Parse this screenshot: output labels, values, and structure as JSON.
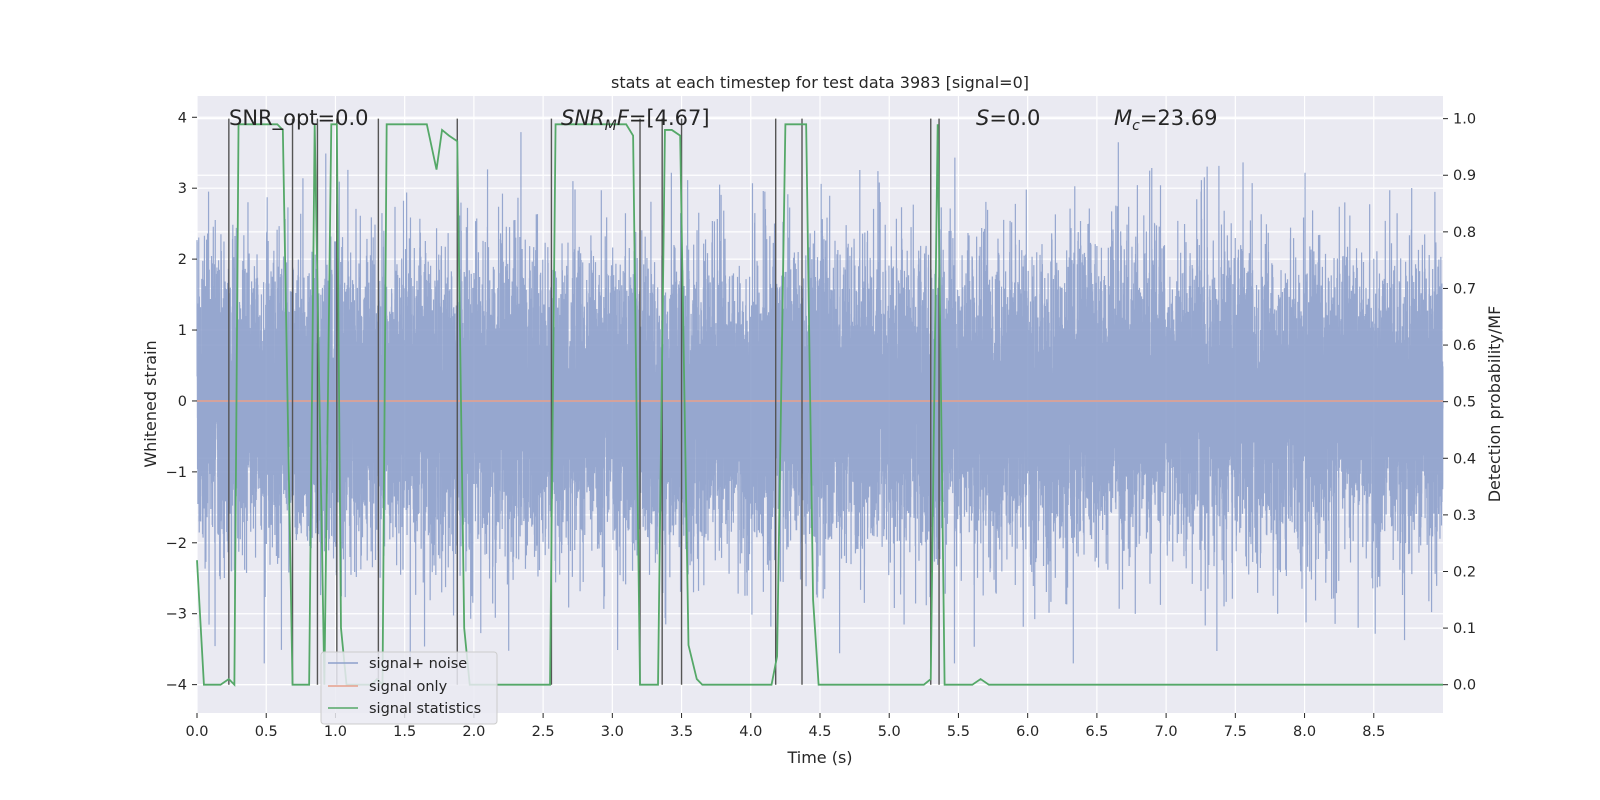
{
  "chart_data": {
    "type": "line",
    "title": "stats at each timestep for test data 3983 [signal=0]",
    "xlabel": "Time (s)",
    "ylabel_left": "Whitened strain",
    "ylabel_right": "Detection probability/MF",
    "xlim": [
      0.0,
      9.0
    ],
    "ylim_left": [
      -4.4,
      4.3
    ],
    "ylim_right": [
      -0.05,
      1.04
    ],
    "x_ticks": [
      0.0,
      0.5,
      1.0,
      1.5,
      2.0,
      2.5,
      3.0,
      3.5,
      4.0,
      4.5,
      5.0,
      5.5,
      6.0,
      6.5,
      7.0,
      7.5,
      8.0,
      8.5
    ],
    "x_tick_labels": [
      "0.0",
      "0.5",
      "1.0",
      "1.5",
      "2.0",
      "2.5",
      "3.0",
      "3.5",
      "4.0",
      "4.5",
      "5.0",
      "5.5",
      "6.0",
      "6.5",
      "7.0",
      "7.5",
      "8.0",
      "8.5"
    ],
    "y_ticks_left": [
      4,
      3,
      2,
      1,
      0,
      -1,
      -2,
      -3,
      -4
    ],
    "y_tick_labels_left": [
      "4",
      "3",
      "2",
      "1",
      "0",
      "−1",
      "−2",
      "−3",
      "−4"
    ],
    "y_ticks_right": [
      1.0,
      0.9,
      0.8,
      0.7,
      0.6,
      0.5,
      0.4,
      0.3,
      0.2,
      0.1,
      0.0
    ],
    "y_tick_labels_right": [
      "1.0",
      "0.9",
      "0.8",
      "0.7",
      "0.6",
      "0.5",
      "0.4",
      "0.3",
      "0.2",
      "0.1",
      "0.0"
    ],
    "grid": true,
    "legend_position": "bottom-left",
    "annotations": {
      "snr_opt": "SNR_opt=0.0",
      "snr_mf_symbol": "SNR",
      "snr_mf_sub": "M",
      "snr_mf_tail": "F",
      "snr_mf_value": "=[4.67]",
      "s_symbol": "S",
      "s_value": "=0.0",
      "mc_symbol": "M",
      "mc_sub": "c",
      "mc_value": "=23.69"
    },
    "series": [
      {
        "name": "signal+ noise",
        "axis": "left",
        "color": "#8da0cb",
        "style": "noise",
        "sample_rate": 2048,
        "sigma": 1.0,
        "approx_range": [
          -3.7,
          3.9
        ]
      },
      {
        "name": "signal only",
        "axis": "left",
        "color": "#e7a08b",
        "x": [
          0.0,
          9.0
        ],
        "y": [
          0.0,
          0.0
        ]
      },
      {
        "name": "signal statistics",
        "axis": "right",
        "color": "#55a868",
        "x": [
          0.0,
          0.05,
          0.17,
          0.23,
          0.27,
          0.3,
          0.5,
          0.58,
          0.62,
          0.69,
          0.73,
          0.81,
          0.85,
          0.92,
          0.97,
          1.01,
          1.04,
          1.08,
          1.13,
          1.17,
          1.21,
          1.26,
          1.3,
          1.34,
          1.37,
          1.43,
          1.52,
          1.6,
          1.66,
          1.73,
          1.77,
          1.82,
          1.88,
          1.93,
          1.97,
          2.01,
          2.05,
          2.1,
          2.2,
          2.3,
          2.4,
          2.5,
          2.55,
          2.59,
          2.64,
          2.8,
          2.9,
          3.0,
          3.1,
          3.15,
          3.2,
          3.24,
          3.28,
          3.33,
          3.38,
          3.43,
          3.49,
          3.55,
          3.61,
          3.65,
          3.7,
          3.8,
          3.9,
          4.0,
          4.1,
          4.15,
          4.19,
          4.25,
          4.34,
          4.4,
          4.45,
          4.49,
          4.55,
          4.7,
          4.9,
          5.1,
          5.25,
          5.3,
          5.35,
          5.4,
          5.45,
          5.6,
          5.66,
          5.72,
          5.8,
          6.5,
          7.5,
          8.2,
          8.5,
          9.0
        ],
        "y": [
          0.22,
          0.0,
          0.0,
          0.01,
          0.0,
          0.99,
          0.99,
          0.99,
          0.98,
          0.0,
          0.0,
          0.0,
          0.99,
          0.0,
          0.99,
          0.99,
          0.1,
          0.0,
          0.0,
          0.0,
          0.0,
          0.0,
          0.01,
          0.0,
          0.99,
          0.99,
          0.99,
          0.99,
          0.99,
          0.91,
          0.98,
          0.97,
          0.96,
          0.1,
          0.0,
          0.0,
          0.0,
          0.0,
          0.0,
          0.0,
          0.0,
          0.0,
          0.0,
          0.99,
          0.99,
          0.99,
          0.99,
          0.99,
          0.99,
          0.97,
          0.0,
          0.0,
          0.0,
          0.0,
          0.98,
          0.98,
          0.97,
          0.07,
          0.01,
          0.0,
          0.0,
          0.0,
          0.0,
          0.0,
          0.0,
          0.0,
          0.05,
          0.99,
          0.99,
          0.99,
          0.15,
          0.0,
          0.0,
          0.0,
          0.0,
          0.0,
          0.0,
          0.01,
          0.99,
          0.0,
          0.0,
          0.0,
          0.01,
          0.0,
          0.0,
          0.0,
          0.0,
          0.0,
          0.0,
          0.0
        ]
      }
    ],
    "vertical_markers": [
      0.23,
      0.69,
      0.87,
      1.01,
      1.31,
      1.88,
      2.56,
      3.2,
      3.36,
      3.5,
      4.18,
      4.37,
      5.3,
      5.36
    ]
  },
  "legend": {
    "items": [
      {
        "label": "signal+ noise",
        "color": "#8da0cb"
      },
      {
        "label": "signal only",
        "color": "#e7a08b"
      },
      {
        "label": "signal statistics",
        "color": "#55a868"
      }
    ]
  },
  "colors": {
    "plot_bg": "#eaeaf2",
    "grid": "#ffffff",
    "marker": "#555555"
  }
}
